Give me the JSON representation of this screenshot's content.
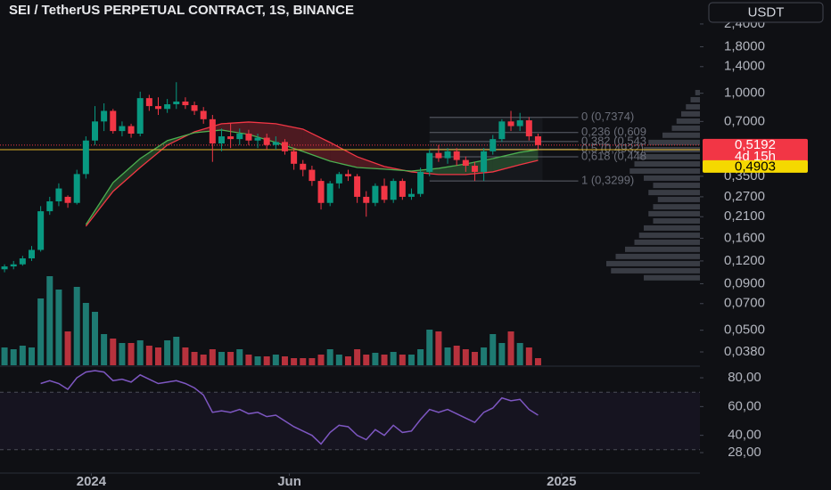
{
  "header": {
    "title": "SEI / TetherUS PERPETUAL CONTRACT, 1S, BINANCE",
    "currency": "USDT"
  },
  "chart_data": [
    {
      "type": "candlestick",
      "log_scale": true,
      "grid": false,
      "up_color": "#089981",
      "down_color": "#f23645",
      "x": [
        0,
        1,
        2,
        3,
        4,
        5,
        6,
        7,
        8,
        9,
        10,
        11,
        12,
        13,
        14,
        15,
        16,
        17,
        18,
        19,
        20,
        21,
        22,
        23,
        24,
        25,
        26,
        27,
        28,
        29,
        30,
        31,
        32,
        33,
        34,
        35,
        36,
        37,
        38,
        39,
        40,
        41,
        42,
        43,
        44,
        45,
        46,
        47,
        48,
        49,
        50,
        51,
        52,
        53,
        54,
        55,
        56,
        57,
        58,
        59
      ],
      "open": [
        0.108,
        0.112,
        0.115,
        0.124,
        0.138,
        0.225,
        0.255,
        0.27,
        0.25,
        0.36,
        0.55,
        0.7,
        0.8,
        0.62,
        0.66,
        0.6,
        0.94,
        0.85,
        0.82,
        0.87,
        0.9,
        0.86,
        0.8,
        0.72,
        0.53,
        0.58,
        0.56,
        0.6,
        0.55,
        0.57,
        0.52,
        0.54,
        0.48,
        0.41,
        0.38,
        0.33,
        0.25,
        0.32,
        0.36,
        0.35,
        0.27,
        0.25,
        0.31,
        0.26,
        0.33,
        0.27,
        0.28,
        0.37,
        0.47,
        0.44,
        0.48,
        0.43,
        0.4,
        0.37,
        0.48,
        0.56,
        0.7,
        0.66,
        0.71,
        0.58
      ],
      "high": [
        0.115,
        0.12,
        0.128,
        0.145,
        0.24,
        0.27,
        0.32,
        0.275,
        0.38,
        0.58,
        0.85,
        0.88,
        0.82,
        0.7,
        0.68,
        1.02,
        0.98,
        0.95,
        0.93,
        1.15,
        0.95,
        0.9,
        0.84,
        0.76,
        0.64,
        0.68,
        0.64,
        0.63,
        0.6,
        0.6,
        0.58,
        0.56,
        0.5,
        0.43,
        0.4,
        0.34,
        0.33,
        0.37,
        0.38,
        0.36,
        0.29,
        0.32,
        0.34,
        0.34,
        0.34,
        0.3,
        0.39,
        0.49,
        0.52,
        0.5,
        0.5,
        0.45,
        0.42,
        0.5,
        0.59,
        0.72,
        0.8,
        0.78,
        0.74,
        0.6
      ],
      "low": [
        0.104,
        0.108,
        0.113,
        0.12,
        0.135,
        0.215,
        0.24,
        0.235,
        0.245,
        0.34,
        0.52,
        0.62,
        0.6,
        0.58,
        0.57,
        0.58,
        0.8,
        0.76,
        0.78,
        0.82,
        0.82,
        0.76,
        0.68,
        0.42,
        0.48,
        0.5,
        0.52,
        0.52,
        0.5,
        0.49,
        0.49,
        0.46,
        0.38,
        0.35,
        0.31,
        0.23,
        0.24,
        0.3,
        0.33,
        0.25,
        0.21,
        0.24,
        0.25,
        0.25,
        0.26,
        0.26,
        0.27,
        0.35,
        0.42,
        0.41,
        0.4,
        0.37,
        0.33,
        0.33,
        0.46,
        0.54,
        0.62,
        0.62,
        0.55,
        0.49
      ],
      "close": [
        0.112,
        0.115,
        0.124,
        0.138,
        0.225,
        0.255,
        0.3,
        0.25,
        0.36,
        0.55,
        0.7,
        0.8,
        0.62,
        0.66,
        0.6,
        0.94,
        0.85,
        0.82,
        0.87,
        0.9,
        0.86,
        0.8,
        0.72,
        0.53,
        0.58,
        0.56,
        0.6,
        0.55,
        0.57,
        0.52,
        0.54,
        0.48,
        0.41,
        0.38,
        0.33,
        0.25,
        0.32,
        0.36,
        0.35,
        0.27,
        0.25,
        0.31,
        0.26,
        0.33,
        0.27,
        0.28,
        0.37,
        0.47,
        0.44,
        0.48,
        0.43,
        0.4,
        0.37,
        0.48,
        0.56,
        0.7,
        0.66,
        0.71,
        0.58,
        0.5192
      ],
      "xlim": [
        -0.5,
        76.9
      ],
      "ylim": [
        0.0321,
        3.25
      ],
      "yticks": [
        {
          "value": 2.4,
          "label": "2,4000"
        },
        {
          "value": 1.8,
          "label": "1,8000"
        },
        {
          "value": 1.4,
          "label": "1,4000"
        },
        {
          "value": 1.0,
          "label": "1,0000"
        },
        {
          "value": 0.7,
          "label": "0,7000"
        },
        {
          "value": 0.35,
          "label": "0,3500"
        },
        {
          "value": 0.27,
          "label": "0,2700"
        },
        {
          "value": 0.21,
          "label": "0,2100"
        },
        {
          "value": 0.16,
          "label": "0,1600"
        },
        {
          "value": 0.12,
          "label": "0,1200"
        },
        {
          "value": 0.09,
          "label": "0,0900"
        },
        {
          "value": 0.07,
          "label": "0,0700"
        },
        {
          "value": 0.05,
          "label": "0,0500"
        },
        {
          "value": 0.038,
          "label": "0,0380"
        }
      ],
      "ma_x": [
        9,
        12,
        15,
        18,
        21,
        24,
        27,
        30,
        33,
        36,
        39,
        42,
        45,
        48,
        51,
        54,
        57,
        59
      ],
      "ma_fast": [
        0.19,
        0.323,
        0.438,
        0.549,
        0.607,
        0.628,
        0.594,
        0.537,
        0.479,
        0.424,
        0.391,
        0.383,
        0.374,
        0.387,
        0.409,
        0.438,
        0.474,
        0.49
      ],
      "ma_slow": [
        0.186,
        0.289,
        0.391,
        0.519,
        0.614,
        0.68,
        0.695,
        0.68,
        0.635,
        0.537,
        0.448,
        0.396,
        0.37,
        0.358,
        0.358,
        0.37,
        0.405,
        0.428
      ],
      "ma_fast_color": "#4caf50",
      "ma_slow_color": "#f23645",
      "fib_x": [
        47,
        59.5
      ],
      "fib_levels": [
        {
          "value": 0.7374,
          "label": "0 (0,7374)"
        },
        {
          "value": 0.609,
          "label": "0,236 (0,609"
        },
        {
          "value": 0.543,
          "label": "0,382 (0,543"
        },
        {
          "value": 0.4932,
          "label": "0,5 (0,4932)"
        },
        {
          "value": 0.448,
          "label": "0,618 (0,448"
        },
        {
          "value": 0.3299,
          "label": "1 (0,3299)"
        }
      ],
      "last_price": {
        "value": 0.5192,
        "label": "0,5192"
      },
      "countdown": "4d 15h",
      "marked_price": {
        "value": 0.4903,
        "label": "0,4903"
      },
      "profile_prices": [
        1.008,
        0.921,
        0.842,
        0.77,
        0.703,
        0.643,
        0.588,
        0.537,
        0.49,
        0.448,
        0.409,
        0.374,
        0.342,
        0.312,
        0.285,
        0.261,
        0.238,
        0.218,
        0.199,
        0.182,
        0.166,
        0.152,
        0.139,
        0.127,
        0.116,
        0.106,
        0.097
      ],
      "profile_volumes": [
        5,
        10,
        15,
        20,
        25,
        30,
        40,
        55,
        60,
        65,
        70,
        75,
        60,
        50,
        55,
        45,
        50,
        55,
        50,
        60,
        65,
        70,
        80,
        90,
        100,
        95,
        60
      ]
    },
    {
      "type": "bar",
      "x": [
        0,
        1,
        2,
        3,
        4,
        5,
        6,
        7,
        8,
        9,
        10,
        11,
        12,
        13,
        14,
        15,
        16,
        17,
        18,
        19,
        20,
        21,
        22,
        23,
        24,
        25,
        26,
        27,
        28,
        29,
        30,
        31,
        32,
        33,
        34,
        35,
        36,
        37,
        38,
        39,
        40,
        41,
        42,
        43,
        44,
        45,
        46,
        47,
        48,
        49,
        50,
        51,
        52,
        53,
        54,
        55,
        56,
        57,
        58,
        59
      ],
      "values": [
        20,
        18,
        22,
        20,
        75,
        100,
        85,
        38,
        88,
        70,
        60,
        35,
        30,
        25,
        25,
        28,
        22,
        20,
        28,
        32,
        20,
        15,
        12,
        18,
        15,
        15,
        18,
        12,
        10,
        10,
        12,
        10,
        8,
        8,
        8,
        12,
        18,
        12,
        10,
        18,
        12,
        14,
        12,
        15,
        12,
        12,
        18,
        40,
        38,
        20,
        22,
        18,
        15,
        20,
        35,
        25,
        38,
        25,
        20,
        8
      ],
      "up_color": "#1e7a72",
      "down_color": "#b7323d"
    },
    {
      "type": "line",
      "color": "#7e57c2",
      "x": [
        0,
        1,
        2,
        3,
        4,
        5,
        6,
        7,
        8,
        9,
        10,
        11,
        12,
        13,
        14,
        15,
        16,
        17,
        18,
        19,
        20,
        21,
        22,
        23,
        24,
        25,
        26,
        27,
        28,
        29,
        30,
        31,
        32,
        33,
        34,
        35,
        36,
        37,
        38,
        39,
        40,
        41,
        42,
        43,
        44,
        45,
        46,
        47,
        48,
        49,
        50,
        51,
        52,
        53,
        54,
        55,
        56,
        57,
        58,
        59
      ],
      "values": [
        null,
        null,
        null,
        null,
        76,
        78,
        76,
        72,
        80,
        84,
        85,
        84,
        78,
        79,
        77,
        82,
        79,
        76,
        77,
        78,
        76,
        73,
        68,
        56,
        57,
        56,
        58,
        55,
        56,
        53,
        54,
        50,
        46,
        43,
        40,
        34,
        42,
        47,
        46,
        40,
        37,
        44,
        40,
        47,
        42,
        43,
        51,
        58,
        56,
        58,
        55,
        52,
        49,
        56,
        59,
        66,
        64,
        65,
        58,
        54
      ],
      "ylim": [
        14.4,
        85.6
      ],
      "yticks": [
        {
          "value": 80,
          "label": "80,00"
        },
        {
          "value": 60,
          "label": "60,00"
        },
        {
          "value": 40,
          "label": "40,00"
        },
        {
          "value": 28,
          "label": "28,00"
        }
      ],
      "levels": [
        70,
        30
      ],
      "xticks": [
        {
          "value": 9.6,
          "label": "2024"
        },
        {
          "value": 31.5,
          "label": "Jun"
        },
        {
          "value": 61.6,
          "label": "2025"
        }
      ]
    }
  ]
}
